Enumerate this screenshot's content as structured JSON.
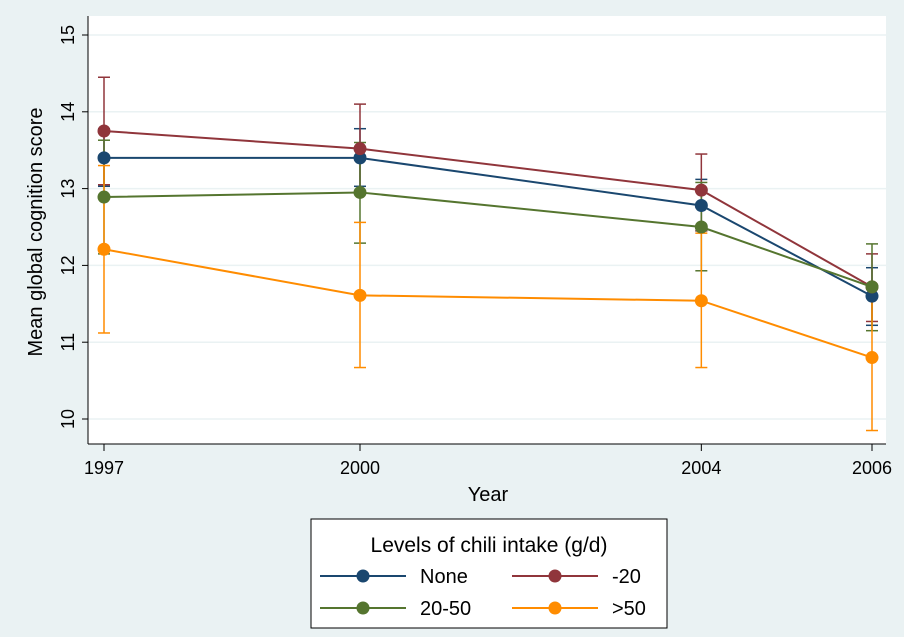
{
  "chart_data": {
    "type": "line",
    "title": "",
    "xlabel": "Year",
    "ylabel": "Mean global cognition score",
    "x": [
      1997,
      2000,
      2004,
      2006
    ],
    "x_tick_labels": [
      "1997",
      "2000",
      "2004",
      "2006"
    ],
    "xlim": [
      1997,
      2006
    ],
    "ylim": [
      9.75,
      15.05
    ],
    "y_ticks": [
      10,
      11,
      12,
      13,
      14,
      15
    ],
    "y_tick_labels": [
      "10",
      "11",
      "12",
      "13",
      "14",
      "15"
    ],
    "grid": true,
    "legend": {
      "title": "Levels of chili intake (g/d)",
      "placement": "bottom-center"
    },
    "series": [
      {
        "name": "None",
        "color": "#1a476f",
        "values": [
          13.4,
          13.4,
          12.78,
          11.6
        ],
        "err_low": [
          13.03,
          13.03,
          12.45,
          11.22
        ],
        "err_high": [
          13.78,
          13.78,
          13.12,
          11.97
        ]
      },
      {
        "name": "-20",
        "color": "#90353b",
        "values": [
          13.75,
          13.52,
          12.98,
          11.72
        ],
        "err_low": [
          13.05,
          12.95,
          12.45,
          11.27
        ],
        "err_high": [
          14.45,
          14.1,
          13.45,
          12.15
        ]
      },
      {
        "name": "20-50",
        "color": "#55752f",
        "values": [
          12.89,
          12.95,
          12.5,
          11.72
        ],
        "err_low": [
          12.15,
          12.29,
          11.93,
          11.15
        ],
        "err_high": [
          13.63,
          13.6,
          13.08,
          12.28
        ]
      },
      {
        "name": ">50",
        "color": "#ff8c00",
        "values": [
          12.21,
          11.61,
          11.54,
          10.8
        ],
        "err_low": [
          11.12,
          10.67,
          10.67,
          9.85
        ],
        "err_high": [
          13.3,
          12.56,
          12.42,
          11.75
        ]
      }
    ]
  }
}
